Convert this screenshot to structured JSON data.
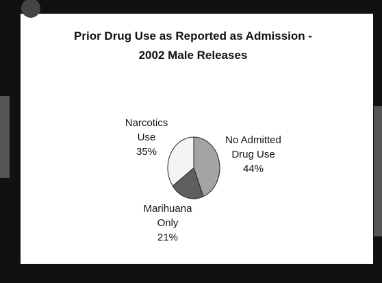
{
  "chart_data": {
    "type": "pie",
    "title": [
      "Prior Drug Use as Reported as Admission -",
      "2002 Male Releases"
    ],
    "categories": [
      "No Admitted Drug Use",
      "Marihuana Only",
      "Narcotics Use"
    ],
    "values": [
      44,
      21,
      35
    ],
    "value_labels": [
      "44%",
      "21%",
      "35%"
    ],
    "colors": [
      "#a3a3a3",
      "#5e5e5e",
      "#f4f4f4"
    ]
  }
}
